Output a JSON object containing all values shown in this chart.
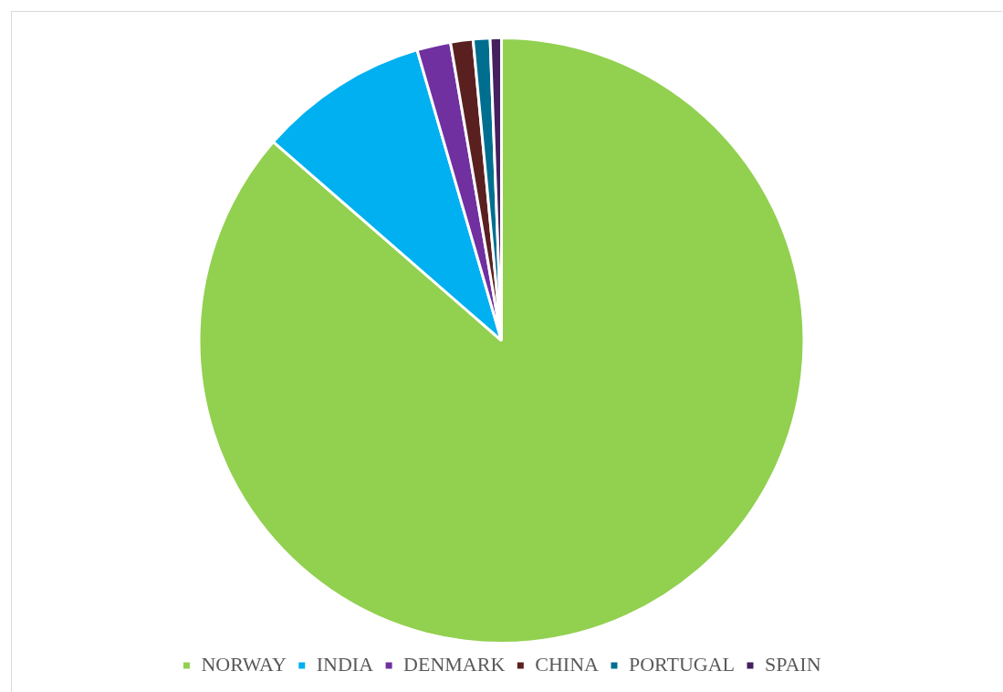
{
  "chart_data": {
    "type": "pie",
    "categories": [
      "NORWAY",
      "INDIA",
      "DENMARK",
      "CHINA",
      "PORTUGAL",
      "SPAIN"
    ],
    "values": [
      86.4,
      9.1,
      1.8,
      1.2,
      0.9,
      0.6
    ],
    "colors": [
      "#92d050",
      "#00b0f0",
      "#7030a0",
      "#5a2020",
      "#006f8f",
      "#44205f"
    ],
    "legend": "bottom"
  }
}
